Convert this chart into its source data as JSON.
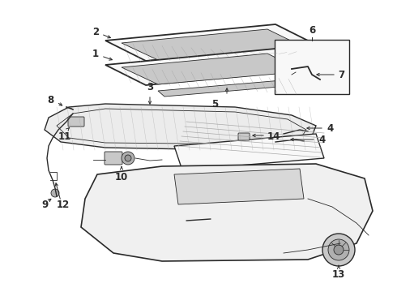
{
  "background_color": "#ffffff",
  "line_color": "#2a2a2a",
  "label_color": "#000000",
  "figsize": [
    4.9,
    3.6
  ],
  "dpi": 100,
  "label_fontsize": 8.5,
  "lw_main": 1.0,
  "lw_thin": 0.6,
  "gray_fill": "#e0e0e0",
  "gray_mid": "#c8c8c8",
  "gray_dark": "#b0b0b0",
  "white_fill": "#f8f8f8"
}
